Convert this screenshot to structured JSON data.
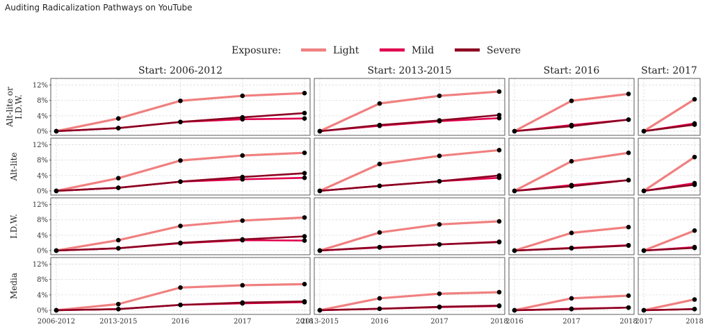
{
  "page": {
    "title": "Auditing Radicalization Pathways on YouTube"
  },
  "chart_data": {
    "type": "line",
    "legend": {
      "title": "Exposure:",
      "placement": "top-center",
      "entries": [
        {
          "name": "Light",
          "color": "#f08080"
        },
        {
          "name": "Mild",
          "color": "#e0004d"
        },
        {
          "name": "Severe",
          "color": "#8b0020"
        }
      ]
    },
    "y_ticks": [
      "0%",
      "4%",
      "8%",
      "12%"
    ],
    "ylim": [
      0,
      13
    ],
    "grid": true,
    "rows": [
      "Alt-lite or\nI.D.W.",
      "Alt-lite",
      "I.D.W.",
      "Media"
    ],
    "columns": [
      {
        "label": "Start:  2006-2012",
        "x": [
          "2006-2012",
          "2013-2015",
          "2016",
          "2017",
          "2018"
        ]
      },
      {
        "label": "Start:  2013-2015",
        "x": [
          "2013-2015",
          "2016",
          "2017",
          "2018"
        ]
      },
      {
        "label": "Start:  2016",
        "x": [
          "2016",
          "2017",
          "2018"
        ]
      },
      {
        "label": "Start:  2017",
        "x": [
          "2017",
          "2018"
        ]
      }
    ],
    "panels": [
      [
        {
          "Light": [
            0,
            3.3,
            7.9,
            9.2,
            9.9
          ],
          "Mild": [
            0,
            0.8,
            2.4,
            3.1,
            3.3
          ],
          "Severe": [
            0,
            0.8,
            2.4,
            3.6,
            4.7
          ]
        },
        {
          "Light": [
            0,
            7.2,
            9.2,
            10.3
          ],
          "Mild": [
            0,
            1.4,
            2.6,
            3.4
          ],
          "Severe": [
            0,
            1.6,
            2.8,
            4.2
          ]
        },
        {
          "Light": [
            0,
            7.9,
            9.7
          ],
          "Mild": [
            0,
            1.6,
            3.0
          ],
          "Severe": [
            0,
            1.3,
            3.0
          ]
        },
        {
          "Light": [
            0,
            8.3
          ],
          "Mild": [
            0,
            2.0
          ],
          "Severe": [
            0,
            1.7
          ]
        }
      ],
      [
        {
          "Light": [
            0,
            3.3,
            7.9,
            9.2,
            9.9
          ],
          "Mild": [
            0,
            0.8,
            2.4,
            3.0,
            3.4
          ],
          "Severe": [
            0,
            0.8,
            2.4,
            3.6,
            4.6
          ]
        },
        {
          "Light": [
            0,
            7.0,
            9.1,
            10.6
          ],
          "Mild": [
            0,
            1.3,
            2.5,
            3.4
          ],
          "Severe": [
            0,
            1.3,
            2.5,
            4.0
          ]
        },
        {
          "Light": [
            0,
            7.7,
            9.9
          ],
          "Mild": [
            0,
            1.5,
            2.8
          ],
          "Severe": [
            0,
            1.2,
            2.8
          ]
        },
        {
          "Light": [
            0,
            8.8
          ],
          "Mild": [
            0,
            2.0
          ],
          "Severe": [
            0,
            1.6
          ]
        }
      ],
      [
        {
          "Light": [
            0,
            2.7,
            6.4,
            7.8,
            8.6
          ],
          "Mild": [
            0,
            0.6,
            1.9,
            2.7,
            2.6
          ],
          "Severe": [
            0,
            0.6,
            2.0,
            2.9,
            3.7
          ]
        },
        {
          "Light": [
            0,
            4.7,
            6.8,
            7.6
          ],
          "Mild": [
            0,
            0.8,
            1.6,
            2.3
          ],
          "Severe": [
            0,
            0.9,
            1.6,
            2.2
          ]
        },
        {
          "Light": [
            0,
            4.6,
            6.1
          ],
          "Mild": [
            0,
            0.7,
            1.4
          ],
          "Severe": [
            0,
            0.6,
            1.3
          ]
        },
        {
          "Light": [
            0,
            5.2
          ],
          "Mild": [
            0,
            0.9
          ],
          "Severe": [
            0,
            0.7
          ]
        }
      ],
      [
        {
          "Light": [
            0,
            1.6,
            5.9,
            6.5,
            6.8
          ],
          "Mild": [
            0,
            0.3,
            1.4,
            1.8,
            2.1
          ],
          "Severe": [
            0,
            0.3,
            1.4,
            2.0,
            2.3
          ]
        },
        {
          "Light": [
            0,
            3.1,
            4.3,
            4.7
          ],
          "Mild": [
            0,
            0.4,
            0.8,
            1.1
          ],
          "Severe": [
            0,
            0.4,
            0.9,
            1.2
          ]
        },
        {
          "Light": [
            0,
            3.1,
            3.8
          ],
          "Mild": [
            0,
            0.4,
            0.7
          ],
          "Severe": [
            0,
            0.3,
            0.7
          ]
        },
        {
          "Light": [
            0,
            2.8
          ],
          "Mild": [
            0,
            0.3
          ],
          "Severe": [
            0,
            0.3
          ]
        }
      ]
    ]
  }
}
